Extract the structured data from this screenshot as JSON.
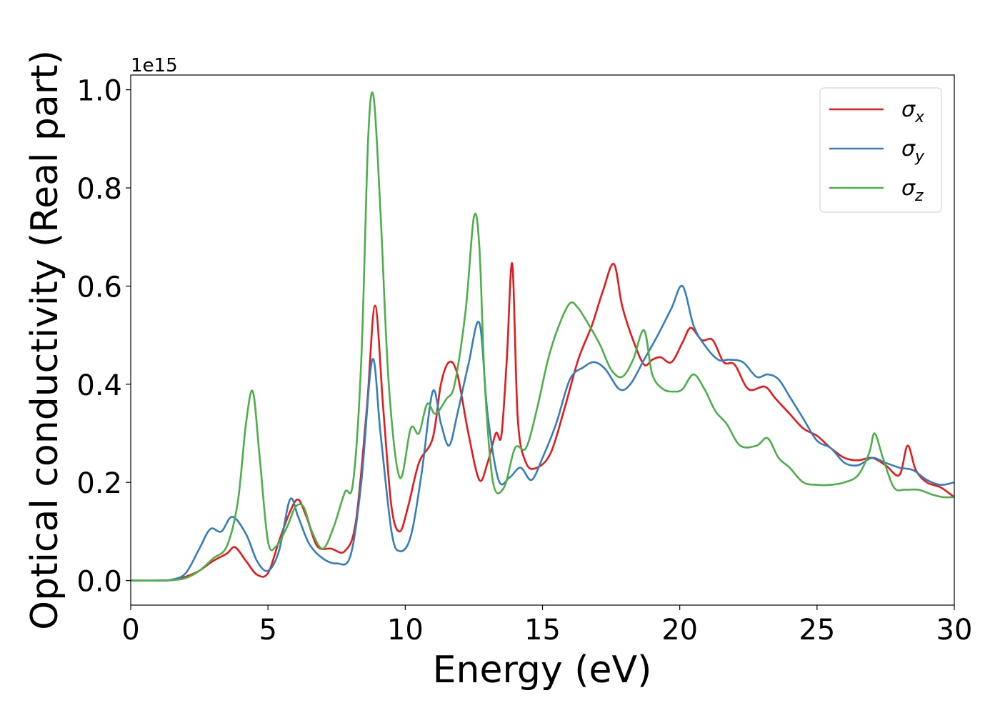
{
  "chart_data": {
    "type": "line",
    "xlabel": "Energy (eV)",
    "ylabel": "Optical conductivity (Real part)",
    "offset_text": "1e15",
    "xlim": [
      0,
      30
    ],
    "ylim": [
      -0.05,
      1.03
    ],
    "xticks": [
      0,
      5,
      10,
      15,
      20,
      25,
      30
    ],
    "yticks": [
      0.0,
      0.2,
      0.4,
      0.6,
      0.8,
      1.0
    ],
    "ytick_labels": [
      "0.0",
      "0.2",
      "0.4",
      "0.6",
      "0.8",
      "1.0"
    ],
    "grid": false,
    "legend_position": "top-right",
    "series": [
      {
        "name": "σx",
        "symbol": "σ",
        "sub": "x",
        "color": "#e41a1c",
        "x": [
          0,
          1,
          1.5,
          2,
          2.5,
          3,
          3.5,
          3.8,
          4.2,
          4.6,
          5,
          5.4,
          5.8,
          6.1,
          6.4,
          6.8,
          7.3,
          7.8,
          8.2,
          8.6,
          8.9,
          9.2,
          9.5,
          9.8,
          10.1,
          10.5,
          11,
          11.3,
          11.6,
          11.9,
          12.3,
          12.7,
          13,
          13.3,
          13.5,
          13.7,
          13.9,
          14.1,
          14.4,
          14.8,
          15.3,
          15.8,
          16.3,
          16.8,
          17.2,
          17.6,
          17.9,
          18.3,
          18.7,
          19,
          19.3,
          19.7,
          20.1,
          20.4,
          20.8,
          21.2,
          21.6,
          22,
          22.5,
          23.1,
          23.5,
          24,
          24.5,
          25,
          25.5,
          26,
          26.5,
          27,
          27.5,
          28,
          28.3,
          28.6,
          29,
          29.5,
          30
        ],
        "y": [
          0,
          0,
          0.001,
          0.008,
          0.02,
          0.04,
          0.055,
          0.068,
          0.04,
          0.012,
          0.015,
          0.08,
          0.14,
          0.165,
          0.13,
          0.07,
          0.065,
          0.06,
          0.12,
          0.35,
          0.56,
          0.35,
          0.15,
          0.1,
          0.15,
          0.24,
          0.29,
          0.4,
          0.445,
          0.42,
          0.3,
          0.205,
          0.24,
          0.3,
          0.295,
          0.45,
          0.645,
          0.33,
          0.24,
          0.23,
          0.26,
          0.35,
          0.45,
          0.52,
          0.59,
          0.645,
          0.56,
          0.49,
          0.44,
          0.45,
          0.455,
          0.445,
          0.485,
          0.515,
          0.49,
          0.49,
          0.445,
          0.44,
          0.39,
          0.395,
          0.37,
          0.34,
          0.31,
          0.295,
          0.27,
          0.25,
          0.245,
          0.25,
          0.235,
          0.215,
          0.275,
          0.225,
          0.2,
          0.19,
          0.17
        ]
      },
      {
        "name": "σy",
        "symbol": "σ",
        "sub": "y",
        "color": "#377eb8",
        "x": [
          0,
          1,
          1.5,
          2,
          2.5,
          2.9,
          3.3,
          3.7,
          4.2,
          4.6,
          5,
          5.4,
          5.8,
          6.1,
          6.5,
          7,
          7.5,
          8,
          8.4,
          8.8,
          9.1,
          9.5,
          9.8,
          10.2,
          10.6,
          11,
          11.3,
          11.6,
          11.9,
          12.3,
          12.7,
          13,
          13.4,
          13.8,
          14.2,
          14.6,
          15,
          15.5,
          16,
          16.5,
          16.9,
          17.3,
          17.8,
          18.2,
          18.7,
          19.2,
          19.7,
          20.1,
          20.5,
          20.9,
          21.4,
          21.8,
          22.3,
          22.8,
          23.2,
          23.6,
          24,
          24.5,
          25,
          25.5,
          26,
          26.5,
          27,
          27.5,
          28,
          28.5,
          29,
          29.5,
          30
        ],
        "y": [
          0,
          0,
          0.002,
          0.015,
          0.065,
          0.105,
          0.1,
          0.13,
          0.095,
          0.04,
          0.02,
          0.06,
          0.165,
          0.13,
          0.075,
          0.045,
          0.035,
          0.05,
          0.2,
          0.45,
          0.3,
          0.1,
          0.06,
          0.09,
          0.22,
          0.385,
          0.32,
          0.275,
          0.34,
          0.44,
          0.525,
          0.34,
          0.205,
          0.21,
          0.23,
          0.205,
          0.25,
          0.32,
          0.41,
          0.435,
          0.445,
          0.43,
          0.39,
          0.4,
          0.45,
          0.5,
          0.555,
          0.6,
          0.52,
          0.48,
          0.45,
          0.45,
          0.445,
          0.415,
          0.42,
          0.41,
          0.375,
          0.33,
          0.285,
          0.27,
          0.24,
          0.235,
          0.25,
          0.24,
          0.23,
          0.225,
          0.205,
          0.195,
          0.2
        ]
      },
      {
        "name": "σz",
        "symbol": "σ",
        "sub": "z",
        "color": "#4daf4a",
        "x": [
          0,
          1,
          1.5,
          2,
          2.5,
          3,
          3.5,
          3.9,
          4.2,
          4.45,
          4.7,
          5,
          5.3,
          5.7,
          6,
          6.3,
          6.6,
          7,
          7.4,
          7.8,
          8.1,
          8.4,
          8.65,
          8.85,
          9.1,
          9.4,
          9.8,
          10.2,
          10.5,
          10.8,
          11.1,
          11.5,
          11.8,
          12.2,
          12.5,
          12.7,
          12.9,
          13.2,
          13.6,
          14,
          14.4,
          14.8,
          15.2,
          15.6,
          16,
          16.3,
          16.7,
          17.1,
          17.5,
          17.9,
          18.3,
          18.7,
          19,
          19.4,
          19.8,
          20.1,
          20.5,
          20.9,
          21.3,
          21.7,
          22.2,
          22.8,
          23.2,
          23.6,
          24,
          24.5,
          25,
          25.5,
          26,
          26.5,
          26.9,
          27.1,
          27.4,
          27.8,
          28.2,
          28.7,
          29.2,
          29.6,
          30
        ],
        "y": [
          0,
          0,
          0.001,
          0.005,
          0.02,
          0.045,
          0.07,
          0.16,
          0.32,
          0.385,
          0.25,
          0.08,
          0.07,
          0.11,
          0.15,
          0.15,
          0.1,
          0.065,
          0.11,
          0.18,
          0.2,
          0.45,
          0.9,
          0.985,
          0.75,
          0.4,
          0.21,
          0.31,
          0.3,
          0.36,
          0.34,
          0.37,
          0.4,
          0.55,
          0.74,
          0.68,
          0.4,
          0.2,
          0.19,
          0.27,
          0.27,
          0.35,
          0.45,
          0.52,
          0.565,
          0.555,
          0.52,
          0.48,
          0.43,
          0.415,
          0.45,
          0.51,
          0.42,
          0.39,
          0.385,
          0.39,
          0.42,
          0.39,
          0.345,
          0.32,
          0.275,
          0.275,
          0.29,
          0.25,
          0.23,
          0.2,
          0.195,
          0.195,
          0.2,
          0.215,
          0.26,
          0.3,
          0.25,
          0.19,
          0.185,
          0.185,
          0.175,
          0.17,
          0.17
        ]
      }
    ]
  }
}
